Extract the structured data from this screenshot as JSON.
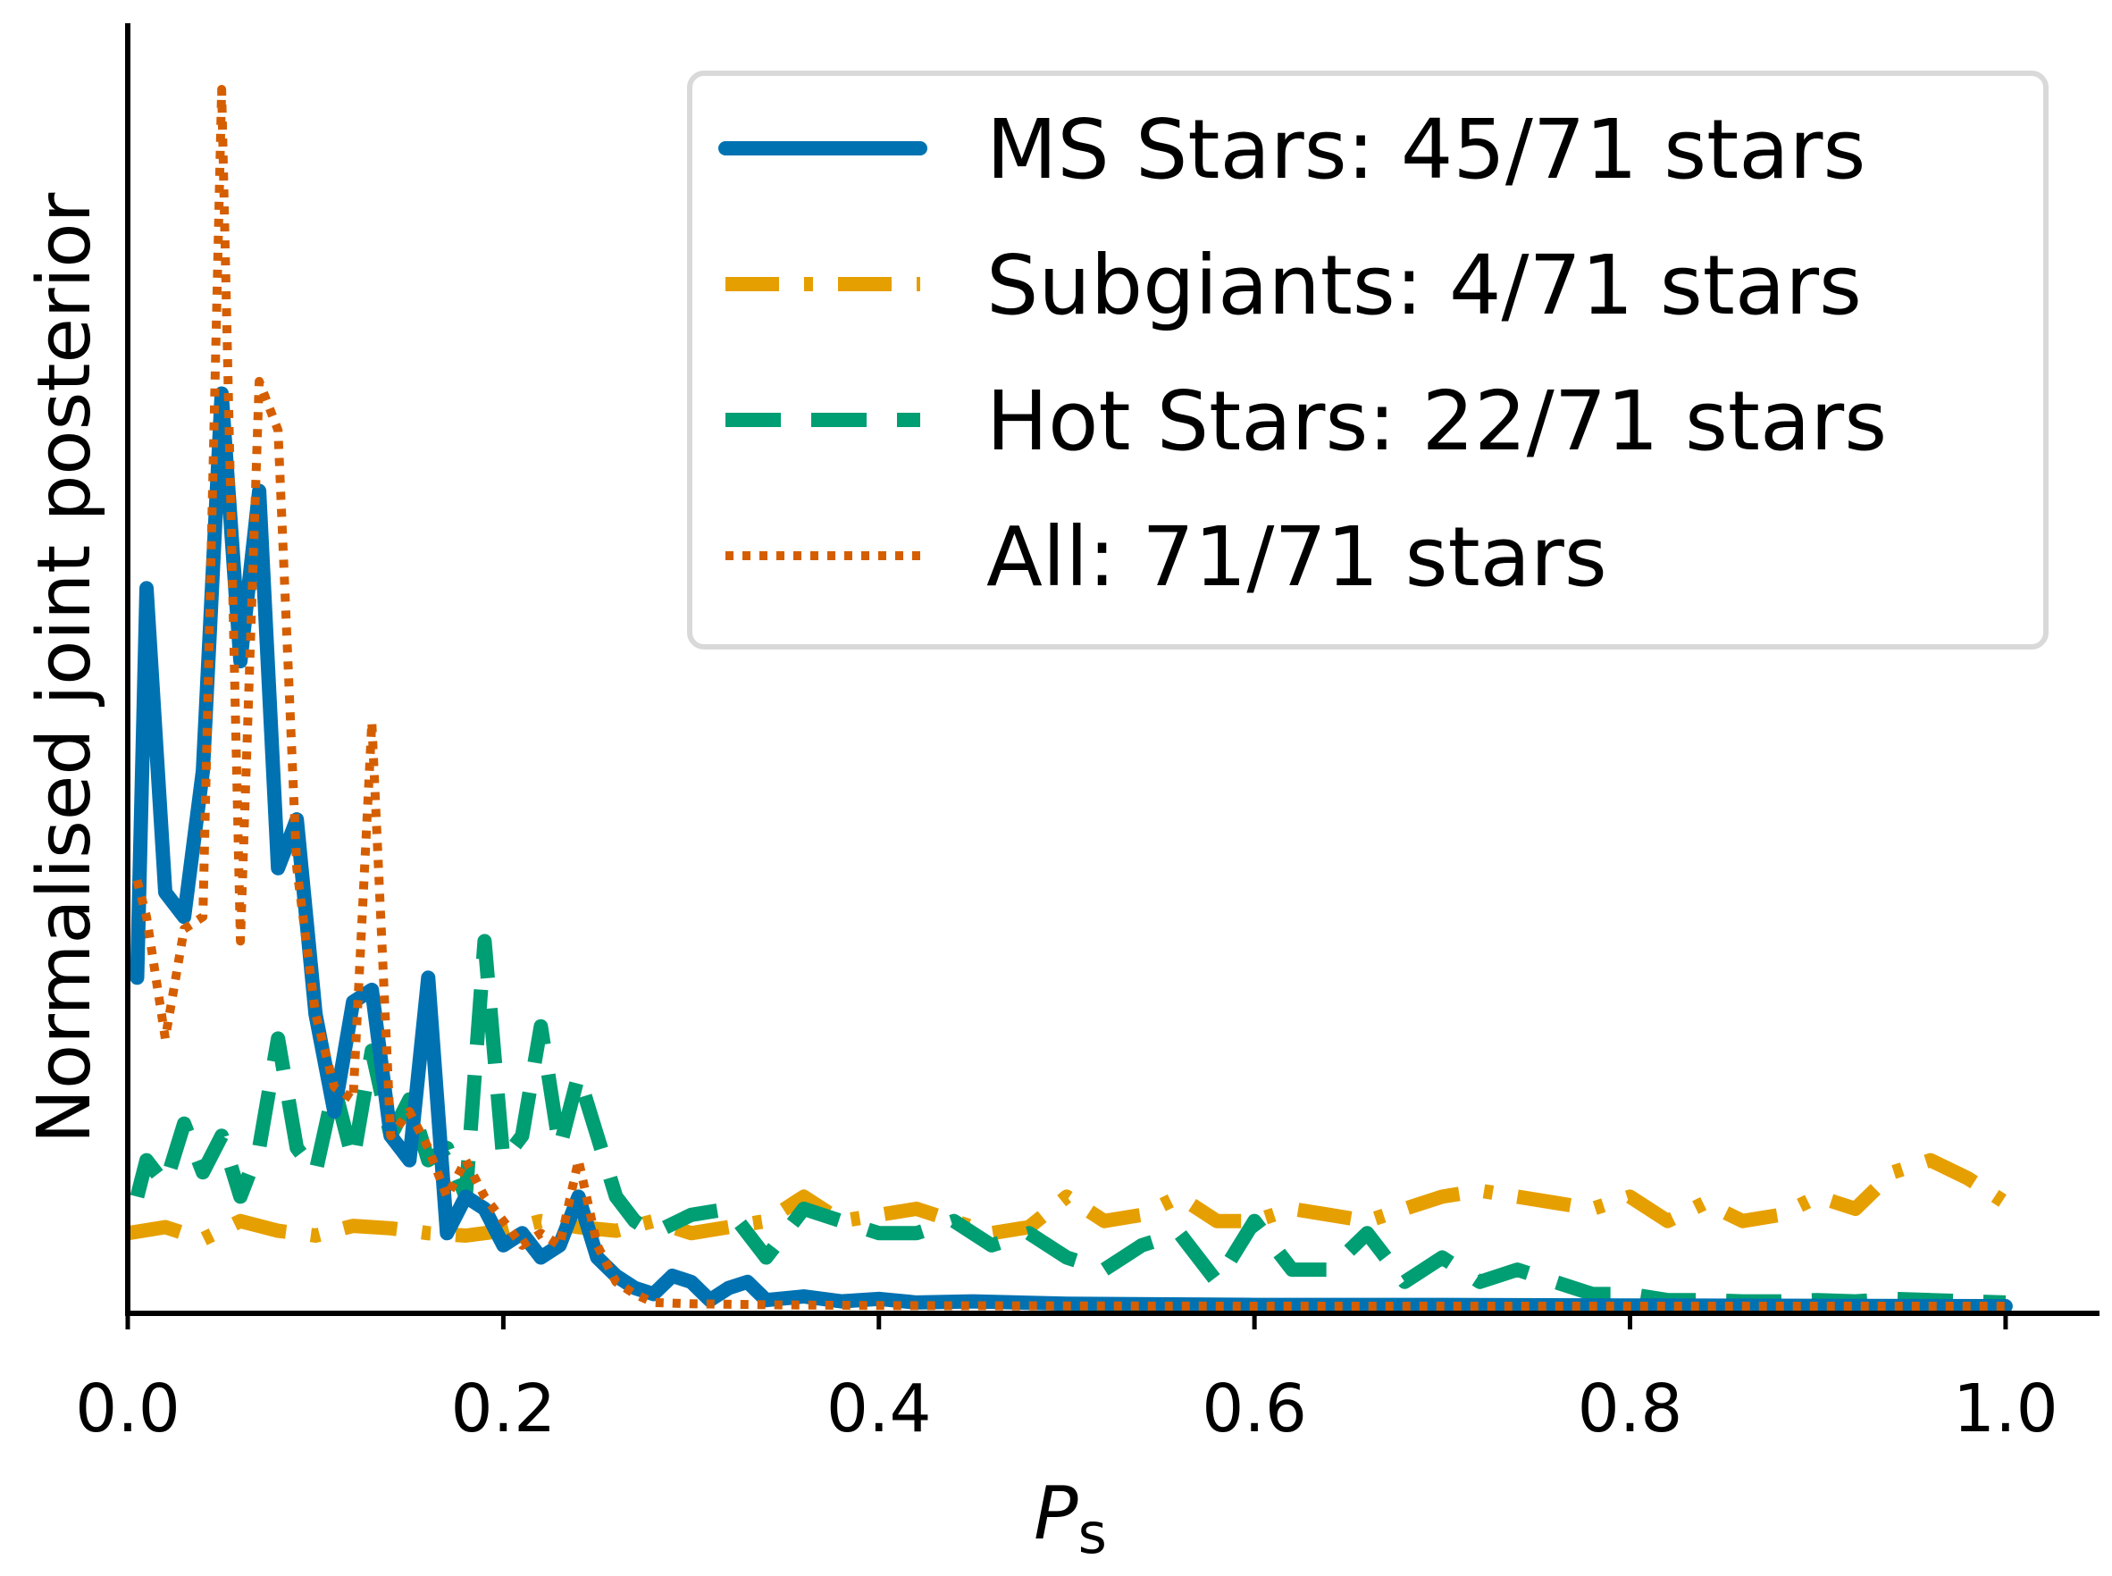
{
  "chart_data": {
    "type": "line",
    "xlabel_main": "P",
    "xlabel_sub": "s",
    "ylabel": "Normalised joint posterior",
    "xlim": [
      0.0,
      1.05
    ],
    "ylim": [
      0,
      1.0
    ],
    "x_ticks": [
      "0.0",
      "0.2",
      "0.4",
      "0.6",
      "0.8",
      "1.0"
    ],
    "x_tick_values": [
      0.0,
      0.2,
      0.4,
      0.6,
      0.8,
      1.0
    ],
    "y_ticks_shown": false,
    "grid": false,
    "legend_position": "top-right",
    "series": [
      {
        "name": "MS Stars: 45/71 stars",
        "color": "#0072B2",
        "style": "solid",
        "points": [
          [
            0.005,
            0.27
          ],
          [
            0.01,
            0.59
          ],
          [
            0.02,
            0.34
          ],
          [
            0.03,
            0.32
          ],
          [
            0.04,
            0.44
          ],
          [
            0.05,
            0.75
          ],
          [
            0.06,
            0.53
          ],
          [
            0.07,
            0.67
          ],
          [
            0.08,
            0.36
          ],
          [
            0.09,
            0.4
          ],
          [
            0.1,
            0.24
          ],
          [
            0.11,
            0.16
          ],
          [
            0.12,
            0.25
          ],
          [
            0.13,
            0.26
          ],
          [
            0.14,
            0.14
          ],
          [
            0.15,
            0.12
          ],
          [
            0.16,
            0.27
          ],
          [
            0.17,
            0.06
          ],
          [
            0.18,
            0.09
          ],
          [
            0.19,
            0.08
          ],
          [
            0.2,
            0.05
          ],
          [
            0.21,
            0.06
          ],
          [
            0.22,
            0.04
          ],
          [
            0.23,
            0.05
          ],
          [
            0.24,
            0.09
          ],
          [
            0.25,
            0.04
          ],
          [
            0.26,
            0.025
          ],
          [
            0.27,
            0.015
          ],
          [
            0.28,
            0.01
          ],
          [
            0.29,
            0.025
          ],
          [
            0.3,
            0.02
          ],
          [
            0.31,
            0.005
          ],
          [
            0.32,
            0.015
          ],
          [
            0.33,
            0.02
          ],
          [
            0.34,
            0.005
          ],
          [
            0.36,
            0.008
          ],
          [
            0.38,
            0.004
          ],
          [
            0.4,
            0.006
          ],
          [
            0.42,
            0.003
          ],
          [
            0.45,
            0.004
          ],
          [
            0.5,
            0.002
          ],
          [
            0.6,
            0.001
          ],
          [
            0.7,
            0.001
          ],
          [
            0.8,
            0.0005
          ],
          [
            1.0,
            0.0
          ]
        ]
      },
      {
        "name": "Subgiants: 4/71 stars",
        "color": "#E69F00",
        "style": "dashdot",
        "points": [
          [
            0.0,
            0.06
          ],
          [
            0.02,
            0.065
          ],
          [
            0.04,
            0.055
          ],
          [
            0.06,
            0.07
          ],
          [
            0.08,
            0.062
          ],
          [
            0.1,
            0.058
          ],
          [
            0.12,
            0.066
          ],
          [
            0.14,
            0.064
          ],
          [
            0.16,
            0.06
          ],
          [
            0.18,
            0.058
          ],
          [
            0.2,
            0.062
          ],
          [
            0.22,
            0.07
          ],
          [
            0.24,
            0.065
          ],
          [
            0.26,
            0.062
          ],
          [
            0.28,
            0.07
          ],
          [
            0.3,
            0.06
          ],
          [
            0.32,
            0.065
          ],
          [
            0.34,
            0.07
          ],
          [
            0.36,
            0.09
          ],
          [
            0.38,
            0.07
          ],
          [
            0.4,
            0.075
          ],
          [
            0.42,
            0.08
          ],
          [
            0.44,
            0.07
          ],
          [
            0.46,
            0.06
          ],
          [
            0.48,
            0.065
          ],
          [
            0.5,
            0.09
          ],
          [
            0.52,
            0.07
          ],
          [
            0.54,
            0.075
          ],
          [
            0.56,
            0.09
          ],
          [
            0.58,
            0.07
          ],
          [
            0.6,
            0.07
          ],
          [
            0.62,
            0.08
          ],
          [
            0.64,
            0.075
          ],
          [
            0.66,
            0.07
          ],
          [
            0.68,
            0.08
          ],
          [
            0.7,
            0.09
          ],
          [
            0.72,
            0.095
          ],
          [
            0.74,
            0.09
          ],
          [
            0.76,
            0.085
          ],
          [
            0.78,
            0.08
          ],
          [
            0.8,
            0.09
          ],
          [
            0.82,
            0.07
          ],
          [
            0.84,
            0.085
          ],
          [
            0.86,
            0.07
          ],
          [
            0.88,
            0.075
          ],
          [
            0.9,
            0.09
          ],
          [
            0.92,
            0.08
          ],
          [
            0.94,
            0.11
          ],
          [
            0.96,
            0.12
          ],
          [
            0.98,
            0.105
          ],
          [
            1.0,
            0.085
          ]
        ]
      },
      {
        "name": "Hot Stars: 22/71 stars",
        "color": "#009E73",
        "style": "dashed",
        "points": [
          [
            0.005,
            0.09
          ],
          [
            0.01,
            0.12
          ],
          [
            0.02,
            0.1
          ],
          [
            0.03,
            0.15
          ],
          [
            0.04,
            0.11
          ],
          [
            0.05,
            0.14
          ],
          [
            0.06,
            0.09
          ],
          [
            0.07,
            0.13
          ],
          [
            0.08,
            0.22
          ],
          [
            0.09,
            0.13
          ],
          [
            0.1,
            0.11
          ],
          [
            0.11,
            0.18
          ],
          [
            0.12,
            0.12
          ],
          [
            0.13,
            0.21
          ],
          [
            0.14,
            0.14
          ],
          [
            0.15,
            0.17
          ],
          [
            0.16,
            0.12
          ],
          [
            0.17,
            0.13
          ],
          [
            0.18,
            0.09
          ],
          [
            0.19,
            0.3
          ],
          [
            0.2,
            0.12
          ],
          [
            0.21,
            0.14
          ],
          [
            0.22,
            0.23
          ],
          [
            0.23,
            0.13
          ],
          [
            0.24,
            0.19
          ],
          [
            0.25,
            0.14
          ],
          [
            0.26,
            0.09
          ],
          [
            0.27,
            0.07
          ],
          [
            0.28,
            0.06
          ],
          [
            0.3,
            0.075
          ],
          [
            0.32,
            0.08
          ],
          [
            0.34,
            0.04
          ],
          [
            0.36,
            0.08
          ],
          [
            0.38,
            0.07
          ],
          [
            0.4,
            0.06
          ],
          [
            0.42,
            0.06
          ],
          [
            0.44,
            0.07
          ],
          [
            0.46,
            0.05
          ],
          [
            0.48,
            0.06
          ],
          [
            0.5,
            0.04
          ],
          [
            0.52,
            0.03
          ],
          [
            0.54,
            0.05
          ],
          [
            0.56,
            0.06
          ],
          [
            0.58,
            0.02
          ],
          [
            0.6,
            0.07
          ],
          [
            0.62,
            0.03
          ],
          [
            0.64,
            0.03
          ],
          [
            0.66,
            0.06
          ],
          [
            0.68,
            0.02
          ],
          [
            0.7,
            0.04
          ],
          [
            0.72,
            0.02
          ],
          [
            0.74,
            0.03
          ],
          [
            0.76,
            0.02
          ],
          [
            0.78,
            0.01
          ],
          [
            0.8,
            0.01
          ],
          [
            0.82,
            0.005
          ],
          [
            0.84,
            0.005
          ],
          [
            0.86,
            0.004
          ],
          [
            0.88,
            0.004
          ],
          [
            0.9,
            0.005
          ],
          [
            0.92,
            0.004
          ],
          [
            0.94,
            0.006
          ],
          [
            0.96,
            0.005
          ],
          [
            0.98,
            0.004
          ],
          [
            1.0,
            0.003
          ]
        ]
      },
      {
        "name": "All: 71/71 stars",
        "color": "#D55E00",
        "style": "dotted",
        "points": [
          [
            0.005,
            0.35
          ],
          [
            0.01,
            0.32
          ],
          [
            0.02,
            0.22
          ],
          [
            0.03,
            0.31
          ],
          [
            0.04,
            0.32
          ],
          [
            0.05,
            1.0
          ],
          [
            0.06,
            0.3
          ],
          [
            0.07,
            0.76
          ],
          [
            0.08,
            0.72
          ],
          [
            0.09,
            0.36
          ],
          [
            0.1,
            0.24
          ],
          [
            0.11,
            0.18
          ],
          [
            0.12,
            0.17
          ],
          [
            0.13,
            0.48
          ],
          [
            0.14,
            0.14
          ],
          [
            0.15,
            0.16
          ],
          [
            0.16,
            0.13
          ],
          [
            0.17,
            0.09
          ],
          [
            0.18,
            0.12
          ],
          [
            0.19,
            0.09
          ],
          [
            0.2,
            0.07
          ],
          [
            0.21,
            0.05
          ],
          [
            0.22,
            0.06
          ],
          [
            0.23,
            0.05
          ],
          [
            0.24,
            0.12
          ],
          [
            0.25,
            0.05
          ],
          [
            0.26,
            0.02
          ],
          [
            0.27,
            0.01
          ],
          [
            0.28,
            0.003
          ],
          [
            0.3,
            0.002
          ],
          [
            0.35,
            0.001
          ],
          [
            0.4,
            0.0005
          ],
          [
            0.5,
            0.0002
          ],
          [
            0.6,
            0.0
          ],
          [
            1.0,
            0.0
          ]
        ]
      }
    ]
  }
}
